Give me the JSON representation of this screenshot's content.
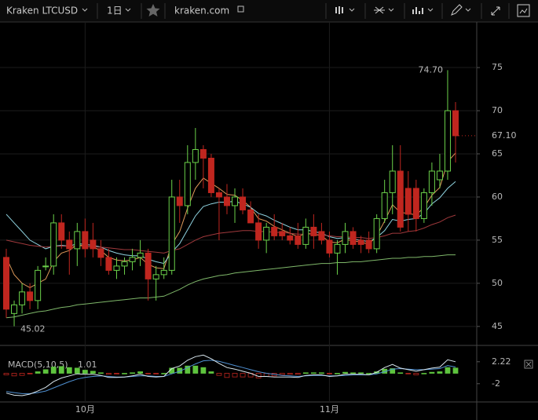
{
  "toolbar": {
    "symbol": "Kraken LTCUSD",
    "interval": "1日",
    "site": "kraken.com"
  },
  "chart_data": {
    "type": "candlestick",
    "categories": [
      null,
      null,
      null,
      null,
      null,
      null,
      null,
      null,
      null,
      null,
      "10月",
      null,
      null,
      null,
      null,
      null,
      null,
      null,
      null,
      null,
      null,
      null,
      null,
      null,
      null,
      null,
      null,
      null,
      null,
      null,
      null,
      null,
      null,
      null,
      null,
      null,
      null,
      null,
      null,
      null,
      null,
      "11月",
      null,
      null,
      null,
      null,
      null,
      null,
      null,
      null,
      null,
      null,
      null,
      null,
      null,
      null,
      null,
      null
    ],
    "open": [
      53,
      46.5,
      47.5,
      49,
      48,
      52,
      52,
      57,
      55,
      54,
      56,
      55,
      54,
      53,
      51.5,
      52,
      52.5,
      53,
      53.5,
      50.5,
      51,
      51.5,
      60,
      59,
      64,
      65.5,
      64.5,
      60.5,
      60,
      59,
      60,
      58.5,
      57,
      55,
      56.5,
      56,
      55.5,
      55.5,
      54.5,
      56.5,
      56,
      55,
      53.5,
      54.5,
      56,
      55,
      55,
      54,
      57.5,
      60.5,
      63,
      61,
      61,
      57.5,
      60.5,
      62,
      63,
      70
    ],
    "high": [
      54,
      48,
      50,
      50,
      52,
      53,
      58,
      58,
      56,
      57,
      57.5,
      57,
      55,
      54,
      53,
      53,
      54,
      55,
      54,
      52,
      53,
      62,
      62,
      66,
      68,
      66,
      65,
      61,
      61.5,
      61,
      61,
      59.5,
      58,
      57,
      58,
      57,
      56.5,
      57,
      57.5,
      58,
      57,
      56,
      55,
      57,
      56.5,
      55.5,
      56,
      58,
      62,
      66,
      66,
      63,
      62,
      61,
      64,
      65,
      74.7,
      71
    ],
    "low": [
      46,
      45.02,
      46.5,
      47,
      47,
      51.5,
      51,
      54,
      51,
      52,
      53,
      53,
      52,
      51,
      50.5,
      51,
      51.5,
      52,
      48,
      48,
      50.5,
      51,
      57,
      58,
      62,
      61,
      60,
      55,
      58,
      57,
      58,
      57,
      54,
      53.5,
      55,
      55,
      54.5,
      54,
      54,
      54,
      54.5,
      53,
      51,
      53.5,
      54,
      53.5,
      53.5,
      53.5,
      57,
      58,
      56,
      56,
      56,
      57,
      59,
      61,
      62,
      64
    ],
    "close": [
      47,
      47.5,
      49,
      48,
      51.5,
      52,
      57,
      55,
      54,
      56,
      54,
      54,
      53,
      51.5,
      52,
      52.5,
      53,
      53.5,
      50.5,
      51,
      51.5,
      60,
      59,
      64,
      65.5,
      64.5,
      60.5,
      60,
      59,
      60,
      58.5,
      57,
      55,
      56.5,
      55.5,
      55.5,
      55,
      54.5,
      56.5,
      55.5,
      55,
      53.5,
      54.5,
      56,
      54.5,
      54.5,
      54,
      57.5,
      60.5,
      63,
      56.5,
      58,
      57.5,
      60.5,
      63,
      63,
      70,
      67.1
    ],
    "up_color": "#6bd14a",
    "down_color": "#c0261f",
    "overlays": [
      {
        "color": "#e09a5a",
        "values": [
          53,
          51,
          50,
          49.5,
          50,
          50.5,
          52.5,
          53.5,
          53.8,
          54.5,
          54.3,
          54.2,
          53.8,
          53,
          52.7,
          52.6,
          52.7,
          53,
          52.2,
          51.8,
          51.7,
          54.5,
          56,
          58.7,
          61,
          62.2,
          61.6,
          61,
          60.3,
          60.2,
          59.6,
          58.8,
          57.5,
          57.2,
          56.6,
          56.2,
          55.8,
          55.4,
          55.8,
          55.7,
          55.5,
          54.8,
          54.7,
          55.1,
          54.9,
          54.8,
          54.5,
          55.5,
          57.2,
          59.1,
          58.2,
          58.1,
          57.9,
          58.8,
          60.2,
          61.1,
          64.1,
          65.1
        ]
      },
      {
        "color": "#8fd3e0",
        "values": [
          58,
          57,
          56,
          55,
          54.5,
          54,
          54.3,
          54.4,
          54.3,
          54.6,
          54.5,
          54.4,
          54.2,
          53.8,
          53.5,
          53.3,
          53.2,
          53.2,
          52.8,
          52.5,
          52.3,
          53.6,
          54.6,
          56.2,
          57.8,
          58.9,
          59.2,
          59.4,
          59.4,
          59.5,
          59.2,
          58.8,
          58.1,
          57.8,
          57.3,
          56.9,
          56.5,
          56.2,
          56.2,
          56,
          55.8,
          55.4,
          55.2,
          55.3,
          55.1,
          55,
          54.8,
          55.3,
          56.1,
          57.4,
          57.2,
          57.4,
          57.5,
          58.1,
          59.2,
          59.9,
          61,
          61.8
        ]
      },
      {
        "color": "#a0393c",
        "values": [
          55,
          54.8,
          54.6,
          54.4,
          54.3,
          54.2,
          54.3,
          54.3,
          54.3,
          54.3,
          54.3,
          54.2,
          54.2,
          54.1,
          54,
          53.9,
          53.9,
          53.8,
          53.7,
          53.6,
          53.5,
          53.8,
          54,
          54.5,
          55,
          55.4,
          55.6,
          55.8,
          55.9,
          56,
          56.1,
          56.1,
          56,
          56,
          55.9,
          55.9,
          55.8,
          55.7,
          55.7,
          55.7,
          55.6,
          55.5,
          55.4,
          55.4,
          55.3,
          55.3,
          55.2,
          55.3,
          55.5,
          55.8,
          55.8,
          56,
          56.1,
          56.4,
          56.8,
          57.1,
          57.6,
          57.9
        ]
      },
      {
        "color": "#7fb86a",
        "values": [
          46,
          46.1,
          46.3,
          46.5,
          46.7,
          46.8,
          47,
          47.2,
          47.3,
          47.5,
          47.6,
          47.7,
          47.8,
          47.9,
          48,
          48.1,
          48.2,
          48.3,
          48.3,
          48.4,
          48.5,
          48.9,
          49.3,
          49.8,
          50.2,
          50.5,
          50.7,
          50.9,
          51,
          51.2,
          51.3,
          51.4,
          51.5,
          51.6,
          51.7,
          51.8,
          51.9,
          52,
          52.1,
          52.2,
          52.3,
          52.3,
          52.4,
          52.4,
          52.5,
          52.5,
          52.6,
          52.7,
          52.8,
          52.9,
          52.9,
          53,
          53,
          53.1,
          53.1,
          53.2,
          53.3,
          53.3
        ]
      }
    ],
    "ylim": [
      42.8,
      80.1
    ],
    "yticks": [
      45,
      50,
      55,
      60,
      65,
      70,
      75
    ],
    "high_label": {
      "value": 74.7,
      "label": "74.70"
    },
    "low_label": 45.02,
    "last_price": {
      "value": 67.1,
      "label": "67.10"
    },
    "macd": {
      "title": "MACD(5,10,5)",
      "ylim": [
        -5.2,
        4.6
      ],
      "yticks": [
        2.22,
        -2
      ],
      "macd_color": "#d8e6ee",
      "signal_color": "#4f8fd0",
      "hist_up": "#5ec43e",
      "hist_down": "#c0261f",
      "macd": [
        -3.8,
        -4.2,
        -4.3,
        -4,
        -3.4,
        -2.7,
        -1.6,
        -0.9,
        -0.5,
        -0.1,
        -0.2,
        -0.2,
        -0.4,
        -0.8,
        -0.8,
        -0.7,
        -0.5,
        -0.2,
        -0.6,
        -0.7,
        -0.6,
        0.9,
        1.4,
        2.5,
        3.2,
        3.5,
        2.8,
        1.9,
        1.1,
        0.8,
        0.4,
        0,
        -0.6,
        -0.6,
        -0.7,
        -0.7,
        -0.7,
        -0.8,
        -0.4,
        -0.3,
        -0.3,
        -0.6,
        -0.5,
        -0.2,
        -0.2,
        -0.2,
        -0.3,
        0.2,
        1.1,
        1.7,
        1,
        0.7,
        0.4,
        0.7,
        1,
        1.2,
        2.6,
        2.22
      ],
      "signal": [
        -3.5,
        -3.7,
        -3.9,
        -3.9,
        -3.7,
        -3.4,
        -2.8,
        -2.2,
        -1.6,
        -1.1,
        -0.8,
        -0.6,
        -0.5,
        -0.6,
        -0.7,
        -0.7,
        -0.6,
        -0.5,
        -0.5,
        -0.6,
        -0.6,
        -0.1,
        0.4,
        1.1,
        1.8,
        2.4,
        2.5,
        2.3,
        1.9,
        1.5,
        1.1,
        0.7,
        0.3,
        0,
        -0.2,
        -0.4,
        -0.5,
        -0.6,
        -0.5,
        -0.4,
        -0.4,
        -0.5,
        -0.5,
        -0.4,
        -0.3,
        -0.3,
        -0.3,
        -0.1,
        0.3,
        0.8,
        0.9,
        0.8,
        0.7,
        0.7,
        0.8,
        0.9,
        1.5,
        1.21
      ],
      "histogram": [
        -0.3,
        -0.5,
        -0.4,
        -0.1,
        0.3,
        0.7,
        1.2,
        1.3,
        1.1,
        1,
        0.6,
        0.4,
        0.1,
        -0.2,
        -0.1,
        0,
        0.1,
        0.3,
        -0.1,
        -0.1,
        0,
        1,
        1,
        1.4,
        1.4,
        1.1,
        0.3,
        -0.4,
        -0.8,
        -0.7,
        -0.7,
        -0.7,
        -0.9,
        -0.6,
        -0.5,
        -0.3,
        -0.2,
        -0.2,
        0.1,
        0.1,
        0.1,
        -0.1,
        0,
        0.2,
        0.1,
        0.1,
        0,
        0.3,
        0.8,
        0.9,
        0.1,
        -0.1,
        -0.3,
        0,
        0.2,
        0.3,
        1.1,
        1.01
      ]
    }
  }
}
